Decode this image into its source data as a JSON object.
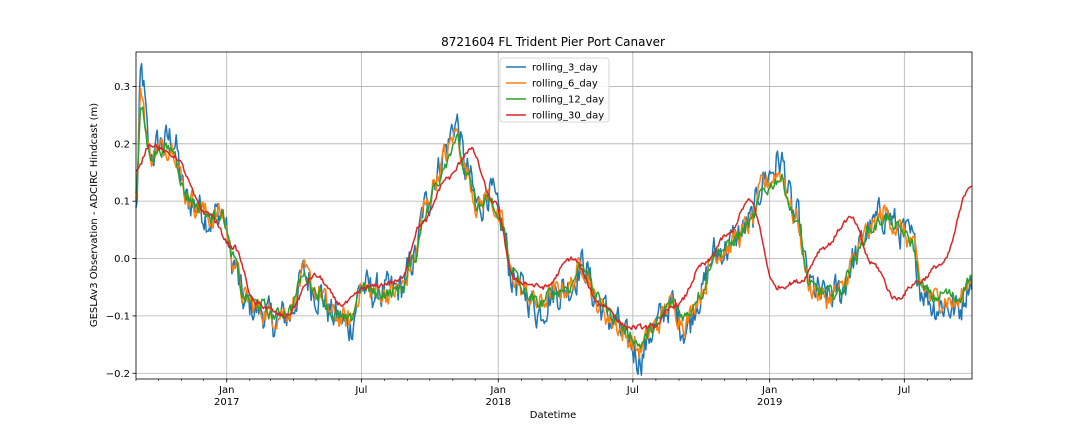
{
  "chart_data": {
    "type": "line",
    "title": "8721604 FL Trident Pier Port Canaver",
    "xlabel": "Datetime",
    "ylabel": "GESLAv3 Observation - ADCIRC Hindcast (m)",
    "xlim": [
      "2016-09-01",
      "2019-09-30"
    ],
    "ylim": [
      -0.21,
      0.36
    ],
    "yticks": [
      -0.2,
      -0.1,
      0.0,
      0.1,
      0.2,
      0.3
    ],
    "ytick_labels": [
      "−0.2",
      "−0.1",
      "0.0",
      "0.1",
      "0.2",
      "0.3"
    ],
    "xticks": [
      {
        "date": "2017-01-01",
        "label": "Jan",
        "sublabel": "2017"
      },
      {
        "date": "2017-07-01",
        "label": "Jul",
        "sublabel": ""
      },
      {
        "date": "2018-01-01",
        "label": "Jan",
        "sublabel": "2018"
      },
      {
        "date": "2018-07-01",
        "label": "Jul",
        "sublabel": ""
      },
      {
        "date": "2019-01-01",
        "label": "Jan",
        "sublabel": "2019"
      },
      {
        "date": "2019-07-01",
        "label": "Jul",
        "sublabel": ""
      }
    ],
    "grid": true,
    "legend_position": "upper-center",
    "series": [
      {
        "name": "rolling_3_day",
        "color": "#1f77b4",
        "noise": 0.028,
        "x": [
          "2016-09-01",
          "2016-09-08",
          "2016-09-20",
          "2016-10-05",
          "2016-10-20",
          "2016-11-08",
          "2016-11-25",
          "2016-12-10",
          "2016-12-25",
          "2017-01-10",
          "2017-01-25",
          "2017-02-15",
          "2017-03-05",
          "2017-03-25",
          "2017-04-15",
          "2017-05-05",
          "2017-05-25",
          "2017-06-15",
          "2017-07-01",
          "2017-07-20",
          "2017-08-10",
          "2017-08-25",
          "2017-09-10",
          "2017-09-25",
          "2017-10-10",
          "2017-10-22",
          "2017-11-05",
          "2017-11-20",
          "2017-12-05",
          "2017-12-20",
          "2018-01-05",
          "2018-01-20",
          "2018-02-05",
          "2018-02-25",
          "2018-03-15",
          "2018-04-05",
          "2018-04-25",
          "2018-05-15",
          "2018-06-05",
          "2018-06-25",
          "2018-07-10",
          "2018-07-30",
          "2018-08-20",
          "2018-09-10",
          "2018-09-30",
          "2018-10-20",
          "2018-11-05",
          "2018-11-20",
          "2018-12-05",
          "2018-12-25",
          "2019-01-15",
          "2019-02-05",
          "2019-02-25",
          "2019-03-15",
          "2019-04-05",
          "2019-04-25",
          "2019-05-15",
          "2019-06-05",
          "2019-06-25",
          "2019-07-10",
          "2019-07-25",
          "2019-08-10",
          "2019-08-25",
          "2019-09-10",
          "2019-09-30"
        ],
        "y": [
          0.08,
          0.32,
          0.18,
          0.2,
          0.21,
          0.1,
          0.09,
          0.07,
          0.08,
          -0.01,
          -0.08,
          -0.09,
          -0.11,
          -0.1,
          -0.03,
          -0.06,
          -0.1,
          -0.12,
          -0.05,
          -0.06,
          -0.06,
          -0.05,
          0.0,
          0.09,
          0.15,
          0.19,
          0.24,
          0.15,
          0.09,
          0.12,
          0.06,
          -0.03,
          -0.06,
          -0.09,
          -0.06,
          -0.05,
          -0.01,
          -0.08,
          -0.11,
          -0.15,
          -0.17,
          -0.12,
          -0.08,
          -0.12,
          -0.06,
          0.01,
          0.02,
          0.04,
          0.06,
          0.14,
          0.17,
          0.07,
          -0.05,
          -0.07,
          -0.06,
          0.0,
          0.05,
          0.08,
          0.05,
          0.03,
          -0.05,
          -0.08,
          -0.08,
          -0.09,
          -0.03
        ]
      },
      {
        "name": "rolling_6_day",
        "color": "#ff7f0e",
        "noise": 0.018,
        "x": [
          "2016-09-01",
          "2016-09-08",
          "2016-09-20",
          "2016-10-05",
          "2016-10-20",
          "2016-11-08",
          "2016-11-25",
          "2016-12-10",
          "2016-12-25",
          "2017-01-10",
          "2017-01-25",
          "2017-02-15",
          "2017-03-05",
          "2017-03-25",
          "2017-04-15",
          "2017-05-05",
          "2017-05-25",
          "2017-06-15",
          "2017-07-01",
          "2017-07-20",
          "2017-08-10",
          "2017-08-25",
          "2017-09-10",
          "2017-09-25",
          "2017-10-10",
          "2017-10-22",
          "2017-11-05",
          "2017-11-20",
          "2017-12-05",
          "2017-12-20",
          "2018-01-05",
          "2018-01-20",
          "2018-02-05",
          "2018-02-25",
          "2018-03-15",
          "2018-04-05",
          "2018-04-25",
          "2018-05-15",
          "2018-06-05",
          "2018-06-25",
          "2018-07-10",
          "2018-07-30",
          "2018-08-20",
          "2018-09-10",
          "2018-09-30",
          "2018-10-20",
          "2018-11-05",
          "2018-11-20",
          "2018-12-05",
          "2018-12-25",
          "2019-01-15",
          "2019-02-05",
          "2019-02-25",
          "2019-03-15",
          "2019-04-05",
          "2019-04-25",
          "2019-05-15",
          "2019-06-05",
          "2019-06-25",
          "2019-07-10",
          "2019-07-25",
          "2019-08-10",
          "2019-08-25",
          "2019-09-10",
          "2019-09-30"
        ],
        "y": [
          0.1,
          0.29,
          0.18,
          0.19,
          0.2,
          0.11,
          0.09,
          0.07,
          0.08,
          -0.0,
          -0.07,
          -0.09,
          -0.1,
          -0.09,
          -0.03,
          -0.06,
          -0.1,
          -0.11,
          -0.05,
          -0.06,
          -0.06,
          -0.05,
          0.0,
          0.09,
          0.14,
          0.18,
          0.22,
          0.15,
          0.09,
          0.11,
          0.06,
          -0.03,
          -0.06,
          -0.08,
          -0.06,
          -0.05,
          -0.01,
          -0.08,
          -0.11,
          -0.14,
          -0.16,
          -0.12,
          -0.08,
          -0.11,
          -0.06,
          0.01,
          0.02,
          0.04,
          0.06,
          0.13,
          0.15,
          0.07,
          -0.05,
          -0.07,
          -0.06,
          0.0,
          0.05,
          0.08,
          0.05,
          0.03,
          -0.05,
          -0.07,
          -0.07,
          -0.08,
          -0.03
        ]
      },
      {
        "name": "rolling_12_day",
        "color": "#2ca02c",
        "noise": 0.01,
        "x": [
          "2016-09-01",
          "2016-09-08",
          "2016-09-20",
          "2016-10-05",
          "2016-10-20",
          "2016-11-08",
          "2016-11-25",
          "2016-12-10",
          "2016-12-25",
          "2017-01-10",
          "2017-01-25",
          "2017-02-15",
          "2017-03-05",
          "2017-03-25",
          "2017-04-15",
          "2017-05-05",
          "2017-05-25",
          "2017-06-15",
          "2017-07-01",
          "2017-07-20",
          "2017-08-10",
          "2017-08-25",
          "2017-09-10",
          "2017-09-25",
          "2017-10-10",
          "2017-10-22",
          "2017-11-05",
          "2017-11-20",
          "2017-12-05",
          "2017-12-20",
          "2018-01-05",
          "2018-01-20",
          "2018-02-05",
          "2018-02-25",
          "2018-03-15",
          "2018-04-05",
          "2018-04-25",
          "2018-05-15",
          "2018-06-05",
          "2018-06-25",
          "2018-07-10",
          "2018-07-30",
          "2018-08-20",
          "2018-09-10",
          "2018-09-30",
          "2018-10-20",
          "2018-11-05",
          "2018-11-20",
          "2018-12-05",
          "2018-12-25",
          "2019-01-15",
          "2019-02-05",
          "2019-02-25",
          "2019-03-15",
          "2019-04-05",
          "2019-04-25",
          "2019-05-15",
          "2019-06-05",
          "2019-06-25",
          "2019-07-10",
          "2019-07-25",
          "2019-08-10",
          "2019-08-25",
          "2019-09-10",
          "2019-09-30"
        ],
        "y": [
          0.12,
          0.26,
          0.18,
          0.19,
          0.19,
          0.11,
          0.09,
          0.07,
          0.08,
          0.0,
          -0.07,
          -0.08,
          -0.1,
          -0.09,
          -0.03,
          -0.06,
          -0.1,
          -0.11,
          -0.05,
          -0.06,
          -0.06,
          -0.05,
          0.0,
          0.08,
          0.13,
          0.17,
          0.21,
          0.14,
          0.09,
          0.1,
          0.06,
          -0.02,
          -0.06,
          -0.08,
          -0.06,
          -0.05,
          -0.01,
          -0.07,
          -0.1,
          -0.13,
          -0.15,
          -0.12,
          -0.08,
          -0.1,
          -0.06,
          0.01,
          0.02,
          0.04,
          0.06,
          0.12,
          0.14,
          0.07,
          -0.05,
          -0.06,
          -0.06,
          0.0,
          0.05,
          0.07,
          0.05,
          0.03,
          -0.05,
          -0.07,
          -0.06,
          -0.07,
          -0.03
        ]
      },
      {
        "name": "rolling_30_day",
        "color": "#d62728",
        "noise": 0.004,
        "x": [
          "2016-09-01",
          "2016-09-20",
          "2016-10-20",
          "2016-12-05",
          "2017-01-10",
          "2017-02-10",
          "2017-03-20",
          "2017-04-30",
          "2017-06-05",
          "2017-07-10",
          "2017-08-20",
          "2017-09-20",
          "2017-10-25",
          "2017-11-25",
          "2017-12-25",
          "2018-01-25",
          "2018-03-05",
          "2018-04-10",
          "2018-05-20",
          "2018-06-25",
          "2018-07-25",
          "2018-08-30",
          "2018-10-05",
          "2018-11-05",
          "2018-12-05",
          "2019-01-10",
          "2019-02-10",
          "2019-03-15",
          "2019-04-20",
          "2019-05-20",
          "2019-06-20",
          "2019-07-20",
          "2019-08-20",
          "2019-09-30"
        ],
        "y": [
          0.15,
          0.2,
          0.18,
          0.08,
          0.02,
          -0.08,
          -0.1,
          -0.03,
          -0.08,
          -0.05,
          -0.04,
          0.06,
          0.14,
          0.19,
          0.1,
          -0.04,
          -0.05,
          0.0,
          -0.08,
          -0.12,
          -0.12,
          -0.08,
          -0.01,
          0.04,
          0.1,
          -0.05,
          -0.04,
          0.02,
          0.07,
          -0.01,
          -0.07,
          -0.04,
          -0.01,
          0.13
        ]
      }
    ]
  }
}
